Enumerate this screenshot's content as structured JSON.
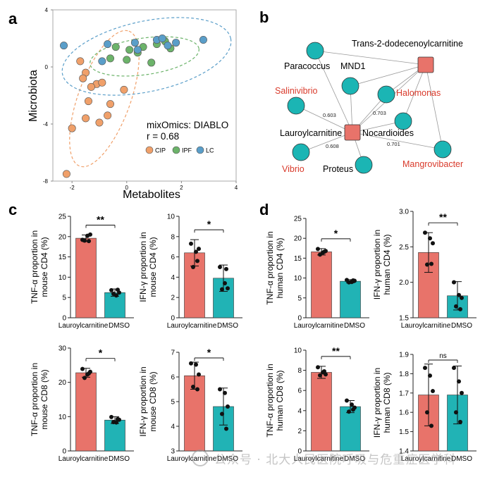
{
  "panel_letters": {
    "a": "a",
    "b": "b",
    "c": "c",
    "d": "d"
  },
  "scatter": {
    "xlabel": "Metabolites",
    "ylabel": "Microbiota",
    "xticks": [
      -2,
      0,
      2,
      4
    ],
    "yticks": [
      4,
      0,
      -4,
      -8
    ],
    "xlim": [
      -2.7,
      4
    ],
    "ylim": [
      -8,
      4
    ],
    "method_text": "mixOmics: DIABLO",
    "r_text": "r = 0.68",
    "legend": [
      {
        "label": "CIP",
        "color": "#f0a06a"
      },
      {
        "label": "IPF",
        "color": "#6cb36a"
      },
      {
        "label": "LC",
        "color": "#5a9ec9"
      }
    ],
    "points": {
      "CIP": [
        [
          -1.7,
          0.4
        ],
        [
          -1.5,
          -0.4
        ],
        [
          -1.6,
          -0.8
        ],
        [
          -1.1,
          -1.2
        ],
        [
          -1.3,
          -1.4
        ],
        [
          -0.9,
          -1.1
        ],
        [
          -0.1,
          -1.6
        ],
        [
          -1.4,
          -2.4
        ],
        [
          -0.6,
          -2.6
        ],
        [
          -1.5,
          -3.6
        ],
        [
          -0.7,
          -3.4
        ],
        [
          -1.0,
          -3.9
        ],
        [
          -2.0,
          -4.3
        ],
        [
          -2.2,
          -7.5
        ]
      ],
      "IPF": [
        [
          -0.6,
          0.6
        ],
        [
          -0.4,
          1.4
        ],
        [
          0.1,
          1.2
        ],
        [
          0.0,
          0.5
        ],
        [
          0.4,
          1.0
        ],
        [
          0.6,
          1.4
        ],
        [
          1.1,
          1.6
        ],
        [
          1.4,
          1.8
        ],
        [
          0.9,
          0.3
        ],
        [
          1.6,
          1.3
        ]
      ],
      "LC": [
        [
          -2.3,
          1.5
        ],
        [
          -0.9,
          0.4
        ],
        [
          -0.7,
          1.6
        ],
        [
          0.3,
          1.7
        ],
        [
          1.1,
          1.9
        ],
        [
          1.3,
          2.0
        ],
        [
          1.5,
          1.5
        ],
        [
          1.8,
          1.7
        ],
        [
          2.8,
          1.9
        ],
        [
          0.4,
          1.2
        ]
      ]
    }
  },
  "network": {
    "nodes": [
      {
        "id": "Trans-2-dodecenoylcarnitine",
        "type": "metabolite",
        "color": "#222222"
      },
      {
        "id": "Lauroylcarnitine",
        "type": "metabolite",
        "color": "#222222"
      },
      {
        "id": "Paracoccus",
        "type": "microbe",
        "color": "#222222"
      },
      {
        "id": "MND1",
        "type": "microbe",
        "color": "#222222"
      },
      {
        "id": "Salinivibrio",
        "type": "microbe",
        "color": "#d93a2b"
      },
      {
        "id": "Halomonas",
        "type": "microbe",
        "color": "#d93a2b"
      },
      {
        "id": "Nocardioides",
        "type": "microbe",
        "color": "#222222"
      },
      {
        "id": "Vibrio",
        "type": "microbe",
        "color": "#d93a2b"
      },
      {
        "id": "Proteus",
        "type": "microbe",
        "color": "#222222"
      },
      {
        "id": "Mangrovibacter",
        "type": "microbe",
        "color": "#d93a2b"
      }
    ],
    "edge_labels": [
      "0.603",
      "0.703",
      "0.608",
      "0.701"
    ]
  },
  "bar_charts": [
    {
      "id": "c1",
      "ylabel": [
        "TNF-α proportion in",
        "mouse CD4 (%)"
      ],
      "yticks": [
        0,
        5,
        10,
        15,
        20,
        25
      ],
      "ylim": [
        0,
        25
      ],
      "sig": "**",
      "categories": [
        "Lauroylcarnitine",
        "DMSO"
      ],
      "means": [
        19.6,
        6.2
      ],
      "sd": [
        0.8,
        0.9
      ],
      "points": [
        [
          19.2,
          20.2,
          20.5,
          19.0,
          18.9
        ],
        [
          6.8,
          5.5,
          6.2,
          5.9,
          6.9
        ]
      ]
    },
    {
      "id": "c2",
      "ylabel": [
        "IFN-γ proportion in",
        "mouse CD4 (%)"
      ],
      "yticks": [
        0,
        2,
        4,
        6,
        8,
        10
      ],
      "ylim": [
        0,
        10
      ],
      "sig": "*",
      "categories": [
        "Lauroylcarnitine",
        "DMSO"
      ],
      "means": [
        6.4,
        3.9
      ],
      "sd": [
        1.3,
        1.3
      ],
      "points": [
        [
          7.3,
          6.5,
          6.8,
          5.0,
          5.6
        ],
        [
          5.0,
          3.4,
          2.9,
          2.8,
          4.8
        ]
      ]
    },
    {
      "id": "c3",
      "ylabel": [
        "TNF-α proportion in",
        "mouse CD8 (%)"
      ],
      "yticks": [
        0,
        10,
        20,
        30
      ],
      "ylim": [
        0,
        30
      ],
      "sig": "*",
      "categories": [
        "Lauroylcarnitine",
        "DMSO"
      ],
      "means": [
        22.8,
        9.0
      ],
      "sd": [
        1.3,
        1.0
      ],
      "points": [
        [
          23.9,
          22.3,
          23.1,
          21.3,
          22.6
        ],
        [
          9.9,
          8.3,
          9.1,
          8.4,
          9.3
        ]
      ]
    },
    {
      "id": "c4",
      "ylabel": [
        "IFN-γ proportion in",
        "mouse CD8 (%)"
      ],
      "yticks": [
        3,
        4,
        5,
        6,
        7
      ],
      "ylim": [
        3,
        7
      ],
      "sig": "*",
      "categories": [
        "Lauroylcarnitine",
        "DMSO"
      ],
      "means": [
        6.05,
        4.8
      ],
      "sd": [
        0.55,
        0.75
      ],
      "points": [
        [
          6.55,
          6.5,
          6.1,
          5.6,
          5.5
        ],
        [
          5.5,
          5.35,
          4.8,
          4.5,
          3.9
        ]
      ]
    },
    {
      "id": "d1",
      "ylabel": [
        "TNF-α proportion in",
        "human CD4 (%)"
      ],
      "yticks": [
        0,
        5,
        10,
        15,
        20,
        25
      ],
      "ylim": [
        0,
        25
      ],
      "sig": "*",
      "categories": [
        "Lauroylcarnitine",
        "DMSO"
      ],
      "means": [
        16.6,
        9.2
      ],
      "sd": [
        0.8,
        0.4
      ],
      "points": [
        [
          17.3,
          16.4,
          16.8,
          15.9,
          16.6
        ],
        [
          9.5,
          9.0,
          9.3,
          8.9,
          9.4
        ]
      ]
    },
    {
      "id": "d2",
      "ylabel": [
        "IFN-γ proportion in",
        "human CD4 (%)"
      ],
      "yticks": [
        1.5,
        2.0,
        2.5,
        3.0
      ],
      "ylim": [
        1.5,
        3.0
      ],
      "sig": "**",
      "categories": [
        "Lauroylcarnitine",
        "DMSO"
      ],
      "means": [
        2.42,
        1.81
      ],
      "sd": [
        0.28,
        0.2
      ],
      "points": [
        [
          2.7,
          2.62,
          2.55,
          2.25,
          2.26
        ],
        [
          2.0,
          1.82,
          1.78,
          1.66,
          1.62
        ]
      ]
    },
    {
      "id": "d3",
      "ylabel": [
        "TNF-α proportion in",
        "human CD8 (%)"
      ],
      "yticks": [
        0,
        2,
        4,
        6,
        8,
        10
      ],
      "ylim": [
        0,
        10
      ],
      "sig": "**",
      "categories": [
        "Lauroylcarnitine",
        "DMSO"
      ],
      "means": [
        7.8,
        4.4
      ],
      "sd": [
        0.6,
        0.6
      ],
      "points": [
        [
          8.3,
          7.8,
          7.6,
          7.5,
          7.9
        ],
        [
          5.0,
          4.6,
          4.3,
          3.9,
          4.1
        ]
      ]
    },
    {
      "id": "d4",
      "ylabel": [
        "IFN-γ proportion in",
        "human CD8 (%)"
      ],
      "yticks": [
        1.4,
        1.5,
        1.6,
        1.7,
        1.8,
        1.9
      ],
      "ylim": [
        1.4,
        1.9
      ],
      "sig": "ns",
      "categories": [
        "Lauroylcarnitine",
        "DMSO"
      ],
      "means": [
        1.69,
        1.69
      ],
      "sd": [
        0.16,
        0.15
      ],
      "points": [
        [
          1.83,
          1.79,
          1.71,
          1.6,
          1.53
        ],
        [
          1.83,
          1.76,
          1.7,
          1.6,
          1.55
        ]
      ]
    }
  ],
  "bar_colors": [
    "#e8736a",
    "#21b3b5"
  ],
  "watermark": "公众号 · 北大人民医院呼吸与危重症医学科"
}
